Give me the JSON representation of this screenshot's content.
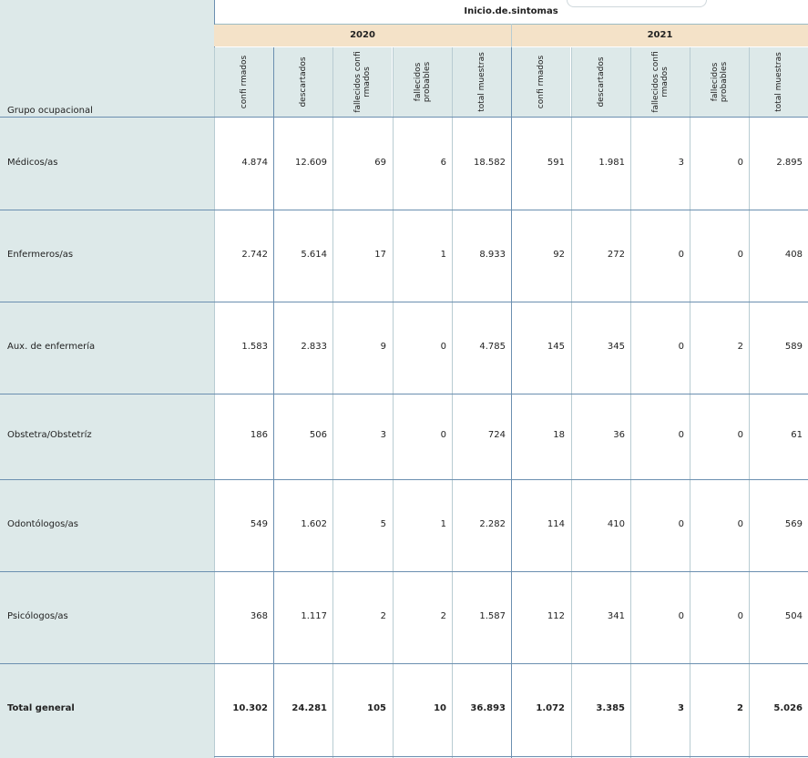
{
  "chart_data": {
    "type": "table",
    "title": "Inicio.de.sintomas",
    "row_header": "Grupo ocupacional",
    "years": [
      "2020",
      "2021"
    ],
    "measures": [
      "confi rmados",
      "descartados",
      "fallecidos confi rmados",
      "fallecidos probables",
      "total muestras"
    ],
    "rows": [
      {
        "label": "Médicos/as",
        "values": [
          "4.874",
          "12.609",
          "69",
          "6",
          "18.582",
          "591",
          "1.981",
          "3",
          "0",
          "2.895"
        ]
      },
      {
        "label": "Enfermeros/as",
        "values": [
          "2.742",
          "5.614",
          "17",
          "1",
          "8.933",
          "92",
          "272",
          "0",
          "0",
          "408"
        ]
      },
      {
        "label": "Aux. de enfermería",
        "values": [
          "1.583",
          "2.833",
          "9",
          "0",
          "4.785",
          "145",
          "345",
          "0",
          "2",
          "589"
        ]
      },
      {
        "label": "Obstetra/Obstetríz",
        "values": [
          "186",
          "506",
          "3",
          "0",
          "724",
          "18",
          "36",
          "0",
          "0",
          "61"
        ]
      },
      {
        "label": "Odontólogos/as",
        "values": [
          "549",
          "1.602",
          "5",
          "1",
          "2.282",
          "114",
          "410",
          "0",
          "0",
          "569"
        ]
      },
      {
        "label": "Psicólogos/as",
        "values": [
          "368",
          "1.117",
          "2",
          "2",
          "1.587",
          "112",
          "341",
          "0",
          "0",
          "504"
        ]
      }
    ],
    "total": {
      "label": "Total general",
      "values": [
        "10.302",
        "24.281",
        "105",
        "10",
        "36.893",
        "1.072",
        "3.385",
        "3",
        "2",
        "5.026"
      ]
    }
  },
  "colors": {
    "label_bg": "#dde9e9",
    "year_bg": "#f4e2c8",
    "row_line": "#6b8fb0",
    "col_line": "#b8ccd2"
  }
}
